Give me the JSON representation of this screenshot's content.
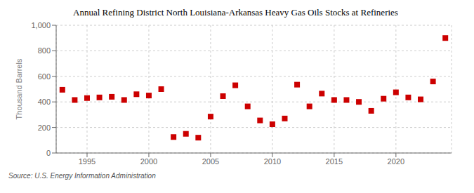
{
  "chart_data": {
    "type": "scatter",
    "title": "Annual Refining District North Louisiana-Arkansas Heavy Gas Oils Stocks at Refineries",
    "ylabel": "Thousand Barrels",
    "annotation": "Source: U.S. Energy Information Administration",
    "x": [
      1993,
      1994,
      1995,
      1996,
      1997,
      1998,
      1999,
      2000,
      2001,
      2002,
      2003,
      2004,
      2005,
      2006,
      2007,
      2008,
      2009,
      2010,
      2011,
      2012,
      2013,
      2014,
      2015,
      2016,
      2017,
      2018,
      2019,
      2020,
      2021,
      2022,
      2023,
      2024
    ],
    "values": [
      495,
      415,
      430,
      435,
      440,
      415,
      460,
      450,
      500,
      125,
      150,
      120,
      285,
      445,
      530,
      365,
      255,
      225,
      270,
      535,
      365,
      465,
      415,
      415,
      400,
      330,
      425,
      475,
      435,
      420,
      560,
      900
    ],
    "color": "#cc0000",
    "marker": "square",
    "xlim": [
      1992.5,
      2024.5
    ],
    "xticks": [
      1995,
      2000,
      2005,
      2010,
      2015,
      2020
    ],
    "ylim": [
      0,
      1000
    ],
    "yticks": [
      0,
      200,
      400,
      600,
      800,
      {
        "value": 1000,
        "label": "1,000"
      }
    ],
    "grid": true
  }
}
